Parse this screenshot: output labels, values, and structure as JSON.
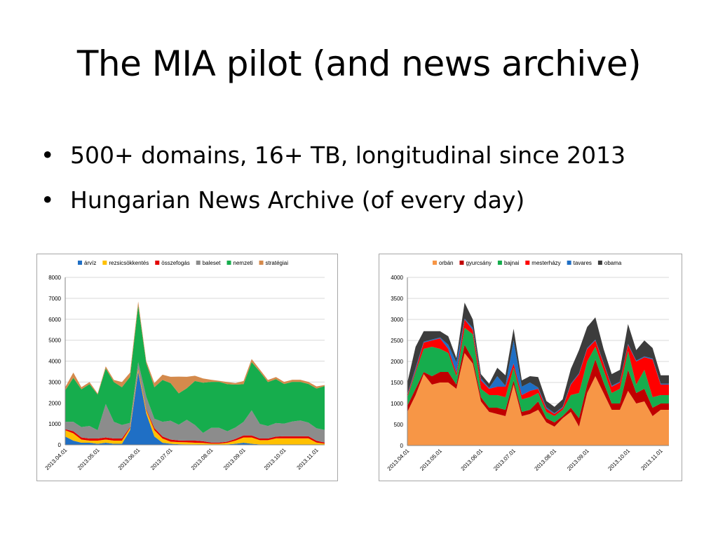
{
  "slide": {
    "title": "The MIA pilot (and news archive)",
    "bullets": [
      "500+ domains, 16+ TB, longitudinal since 2013",
      "Hungarian News Archive (of every day)"
    ]
  },
  "chart_data": [
    {
      "type": "area",
      "stacked": true,
      "title": "",
      "xlabel": "",
      "ylabel": "",
      "legend_position": "top",
      "grid": true,
      "ylim": [
        0,
        8000
      ],
      "yticks": [
        "0",
        "1000",
        "2000",
        "3000",
        "4000",
        "5000",
        "6000",
        "7000",
        "8000"
      ],
      "x_tick_labels": [
        "2013.04.01",
        "2013.05.01",
        "2013.06.01",
        "2013.07.01",
        "2013.08.01",
        "2013.09.01",
        "2013.10.01",
        "2013.11.01"
      ],
      "x_tick_index": [
        0,
        4,
        9,
        13,
        18,
        22,
        27,
        31
      ],
      "series": [
        {
          "name": "árvíz",
          "color": "#1f6fc5",
          "values": [
            400,
            200,
            100,
            100,
            50,
            100,
            50,
            50,
            700,
            3500,
            1500,
            400,
            100,
            50,
            30,
            20,
            20,
            10,
            10,
            10,
            20,
            50,
            100,
            50,
            20,
            20,
            10,
            10,
            10,
            10,
            10,
            10,
            10
          ]
        },
        {
          "name": "rezsicsökkentés",
          "color": "#ffc000",
          "values": [
            300,
            350,
            150,
            100,
            150,
            150,
            150,
            150,
            100,
            100,
            150,
            300,
            200,
            100,
            100,
            100,
            80,
            80,
            50,
            50,
            80,
            150,
            250,
            300,
            200,
            200,
            300,
            300,
            300,
            300,
            300,
            100,
            50
          ]
        },
        {
          "name": "összefogás",
          "color": "#e30000",
          "values": [
            50,
            100,
            100,
            100,
            100,
            100,
            100,
            100,
            50,
            50,
            50,
            100,
            100,
            100,
            80,
            80,
            100,
            80,
            50,
            50,
            50,
            80,
            100,
            100,
            80,
            80,
            80,
            100,
            100,
            100,
            100,
            80,
            50
          ]
        },
        {
          "name": "baleset",
          "color": "#8c8c8c",
          "values": [
            350,
            450,
            500,
            600,
            400,
            1600,
            800,
            650,
            200,
            300,
            600,
            450,
            700,
            900,
            750,
            1000,
            750,
            400,
            700,
            700,
            500,
            550,
            650,
            1200,
            700,
            600,
            650,
            600,
            700,
            750,
            650,
            600,
            600
          ]
        },
        {
          "name": "nemzeti",
          "color": "#16ad4d",
          "values": [
            1500,
            2100,
            1800,
            2000,
            1700,
            1700,
            1900,
            1800,
            2200,
            2700,
            1600,
            1500,
            2000,
            1800,
            1500,
            1500,
            2100,
            2400,
            2200,
            2200,
            2250,
            2050,
            1800,
            2300,
            2500,
            2100,
            2100,
            1900,
            1900,
            1850,
            1850,
            1900,
            2100
          ]
        },
        {
          "name": "stratégiai",
          "color": "#d48a4c",
          "values": [
            150,
            250,
            100,
            100,
            50,
            100,
            100,
            250,
            200,
            200,
            100,
            200,
            250,
            300,
            800,
            550,
            250,
            200,
            100,
            50,
            100,
            70,
            150,
            150,
            100,
            100,
            100,
            100,
            100,
            100,
            100,
            100,
            50
          ]
        }
      ]
    },
    {
      "type": "area",
      "stacked": true,
      "title": "",
      "xlabel": "",
      "ylabel": "",
      "legend_position": "top",
      "grid": true,
      "ylim": [
        0,
        4000
      ],
      "yticks": [
        "0",
        "500",
        "1000",
        "1500",
        "2000",
        "2500",
        "3000",
        "3500",
        "4000"
      ],
      "x_tick_labels": [
        "2013.04.01",
        "2013.05.01",
        "2013.06.01",
        "2013.07.01",
        "2013.08.01",
        "2013.09.01",
        "2013.10.01",
        "2013.11.01"
      ],
      "x_tick_index": [
        0,
        4,
        9,
        13,
        18,
        22,
        27,
        31
      ],
      "series": [
        {
          "name": "orbán",
          "color": "#f79646",
          "values": [
            800,
            1200,
            1700,
            1450,
            1500,
            1500,
            1350,
            2200,
            1950,
            1050,
            800,
            750,
            700,
            1450,
            700,
            750,
            850,
            550,
            450,
            650,
            800,
            450,
            1250,
            1650,
            1250,
            850,
            850,
            1300,
            1000,
            1050,
            700,
            850,
            850
          ]
        },
        {
          "name": "gyurcsány",
          "color": "#c00000",
          "values": [
            150,
            150,
            50,
            200,
            250,
            250,
            100,
            200,
            100,
            100,
            100,
            150,
            150,
            100,
            100,
            100,
            200,
            100,
            100,
            50,
            100,
            200,
            200,
            400,
            250,
            150,
            150,
            500,
            250,
            300,
            200,
            150,
            150
          ]
        },
        {
          "name": "bajnai",
          "color": "#16ad4d",
          "values": [
            200,
            400,
            550,
            700,
            550,
            450,
            200,
            400,
            600,
            200,
            300,
            300,
            300,
            300,
            300,
            300,
            200,
            150,
            150,
            150,
            300,
            600,
            550,
            300,
            300,
            250,
            350,
            450,
            200,
            450,
            250,
            200,
            200
          ]
        },
        {
          "name": "mesterházy",
          "color": "#ff0000",
          "values": [
            50,
            50,
            150,
            150,
            250,
            100,
            80,
            200,
            100,
            200,
            150,
            200,
            250,
            100,
            100,
            150,
            100,
            80,
            50,
            50,
            250,
            450,
            300,
            150,
            150,
            150,
            150,
            150,
            550,
            300,
            900,
            250,
            250
          ]
        },
        {
          "name": "tavares",
          "color": "#1f6fc5",
          "values": [
            20,
            50,
            20,
            20,
            20,
            100,
            250,
            20,
            50,
            50,
            20,
            250,
            20,
            550,
            200,
            200,
            30,
            30,
            20,
            20,
            20,
            20,
            20,
            20,
            20,
            20,
            20,
            20,
            20,
            20,
            20,
            20,
            20
          ]
        },
        {
          "name": "obama",
          "color": "#3c3c3c",
          "values": [
            280,
            500,
            250,
            200,
            150,
            200,
            100,
            380,
            200,
            100,
            100,
            200,
            250,
            280,
            150,
            150,
            250,
            150,
            150,
            180,
            350,
            550,
            500,
            530,
            330,
            280,
            280,
            470,
            250,
            380,
            250,
            200,
            200
          ]
        }
      ]
    }
  ]
}
